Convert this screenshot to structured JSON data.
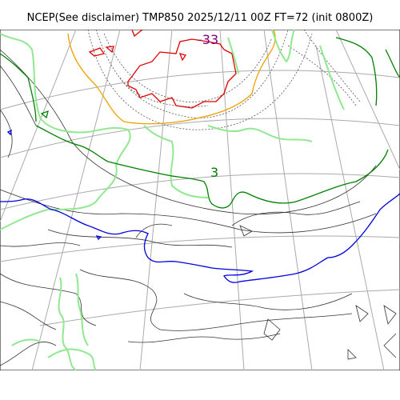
{
  "title": "NCEP(See disclaimer) TMP850 2025/12/11 00Z FT=72 (init 0800Z)",
  "contour_labels": {
    "cold_core": "-33",
    "mid": "3"
  },
  "colors": {
    "grid": "#aaaaaa",
    "thin_contour": "#333333",
    "dotted_contour": "#555555",
    "minus30_isotherm": "#e00000",
    "minus20_isotherm": "#f0a000",
    "minus10_isotherm": "#90e890",
    "zero_isotherm": "#008000",
    "plus_isotherm": "#0000e0",
    "cold_label": "#800080"
  }
}
